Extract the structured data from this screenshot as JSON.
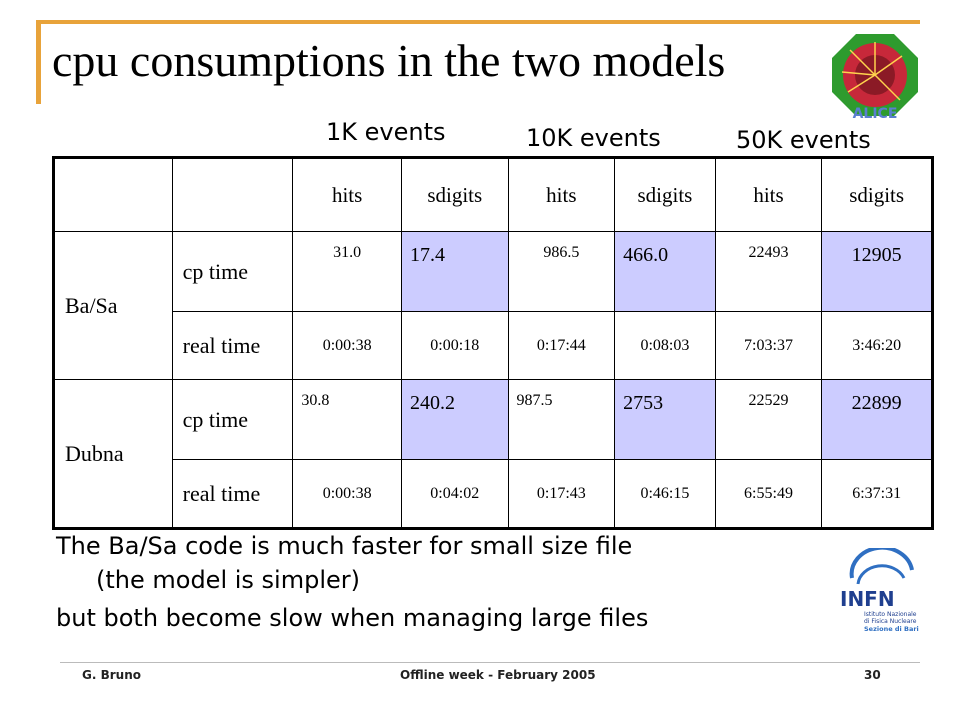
{
  "slide": {
    "title": "cpu consumptions in the two models",
    "event_labels": [
      "1K events",
      "10K events",
      "50K events"
    ],
    "logo_text": "ALICE",
    "table": {
      "header": [
        "",
        "",
        "hits",
        "sdigits",
        "hits",
        "sdigits",
        "hits",
        "sdigits"
      ],
      "groups": [
        {
          "site": "Ba/Sa",
          "rows": [
            {
              "metric": "cp time",
              "values": [
                "31.0",
                "17.4",
                "986.5",
                "466.0",
                "22493",
                "12905"
              ]
            },
            {
              "metric": "real time",
              "values": [
                "0:00:38",
                "0:00:18",
                "0:17:44",
                "0:08:03",
                "7:03:37",
                "3:46:20"
              ]
            }
          ]
        },
        {
          "site": "Dubna",
          "rows": [
            {
              "metric": "cp time",
              "values": [
                "30.8",
                "240.2",
                "987.5",
                "2753",
                "22529",
                "22899"
              ]
            },
            {
              "metric": "real time",
              "values": [
                "0:00:38",
                "0:04:02",
                "0:17:43",
                "0:46:15",
                "6:55:49",
                "6:37:31"
              ]
            }
          ]
        }
      ]
    },
    "notes": [
      "The Ba/Sa code is much faster for small size file",
      "(the model is simpler)",
      "but both become slow when managing large files"
    ],
    "infn_logo": {
      "name": "INFN",
      "lines": [
        "Istituto Nazionale",
        "di Fisica Nucleare",
        "Sezione di Bari"
      ]
    },
    "footer": {
      "author": "G. Bruno",
      "event": "Offline week - February  2005",
      "page": "30"
    },
    "colors": {
      "accent": "#e8a33a",
      "highlight": "#ccccff"
    }
  }
}
